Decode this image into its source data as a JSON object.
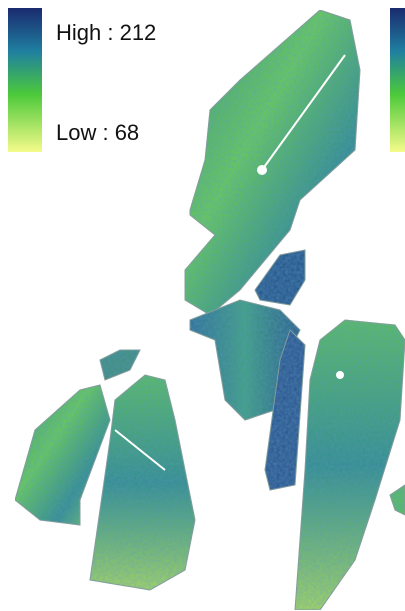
{
  "legend": {
    "high": "High : 212",
    "low": "Low : 68"
  }
}
